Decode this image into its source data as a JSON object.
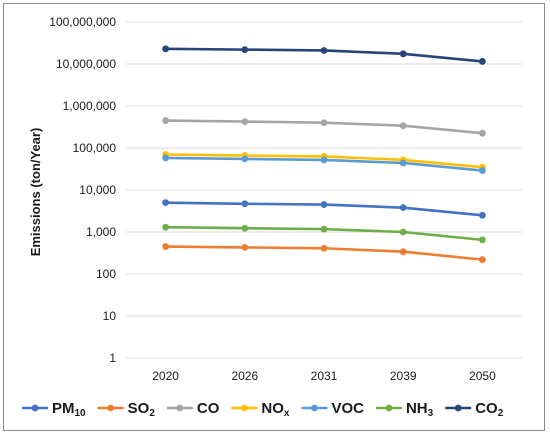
{
  "chart_data": {
    "type": "line",
    "title": "",
    "xlabel": "",
    "ylabel": "Emissions (ton/Year)",
    "yscale": "log",
    "ylim": [
      1,
      100000000
    ],
    "y_ticks": [
      "1",
      "10",
      "100",
      "1,000",
      "10,000",
      "100,000",
      "1,000,000",
      "10,000,000",
      "100,000,000"
    ],
    "categories": [
      "2020",
      "2026",
      "2031",
      "2039",
      "2050"
    ],
    "grid": "horizontal",
    "legend_position": "bottom",
    "series": [
      {
        "name": "PM10",
        "base": "PM",
        "sub": "10",
        "color": "#4472C4",
        "values": [
          5000,
          4700,
          4500,
          3800,
          2500
        ]
      },
      {
        "name": "SO2",
        "base": "SO",
        "sub": "2",
        "color": "#ED7D31",
        "values": [
          450,
          430,
          410,
          340,
          220
        ]
      },
      {
        "name": "CO",
        "base": "CO",
        "sub": "",
        "color": "#A5A5A5",
        "values": [
          450000,
          425000,
          400000,
          340000,
          225000
        ]
      },
      {
        "name": "NOx",
        "base": "NO",
        "sub": "x",
        "color": "#FFC000",
        "values": [
          70000,
          66000,
          63000,
          52000,
          35000
        ]
      },
      {
        "name": "VOC",
        "base": "VOC",
        "sub": "",
        "color": "#5B9BD5",
        "values": [
          58000,
          55000,
          52000,
          44000,
          29000
        ]
      },
      {
        "name": "NH3",
        "base": "NH",
        "sub": "3",
        "color": "#70AD47",
        "values": [
          1300,
          1230,
          1170,
          1000,
          650
        ]
      },
      {
        "name": "CO2",
        "base": "CO",
        "sub": "2",
        "color": "#264478",
        "values": [
          23000000,
          22000000,
          21000000,
          17500000,
          11500000
        ]
      }
    ]
  }
}
